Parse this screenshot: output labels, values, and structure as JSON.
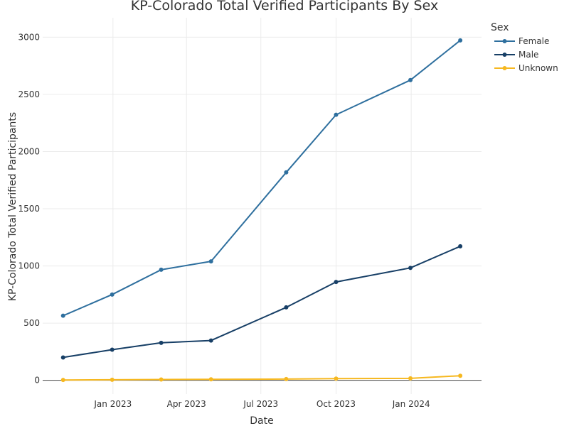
{
  "chart_data": {
    "type": "line",
    "title": "KP-Colorado Total Verified Participants By Sex",
    "xlabel": "Date",
    "ylabel": "KP-Colorado Total Verified Participants",
    "x": [
      "2022-11-01",
      "2022-12-31",
      "2023-03-01",
      "2023-05-01",
      "2023-08-01",
      "2023-10-01",
      "2023-12-31",
      "2024-03-01"
    ],
    "x_ticks": [
      {
        "date": "2023-01-01",
        "label": "Jan 2023"
      },
      {
        "date": "2023-04-01",
        "label": "Apr 2023"
      },
      {
        "date": "2023-07-01",
        "label": "Jul 2023"
      },
      {
        "date": "2023-10-01",
        "label": "Oct 2023"
      },
      {
        "date": "2024-01-01",
        "label": "Jan 2024"
      }
    ],
    "xlim": [
      "2022-10-07",
      "2024-03-27"
    ],
    "y_ticks": [
      0,
      500,
      1000,
      1500,
      2000,
      2500,
      3000
    ],
    "ylim": [
      -120,
      3170
    ],
    "grid": true,
    "legend_title": "Sex",
    "legend_placement": "top-right",
    "series": [
      {
        "name": "Female",
        "color": "#2e6f9e",
        "values": [
          565,
          750,
          967,
          1040,
          1818,
          2322,
          2625,
          2972
        ]
      },
      {
        "name": "Male",
        "color": "#173f66",
        "values": [
          200,
          268,
          328,
          348,
          638,
          860,
          983,
          1172
        ]
      },
      {
        "name": "Unknown",
        "color": "#f6b820",
        "values": [
          3,
          5,
          7,
          9,
          11,
          15,
          17,
          40
        ]
      }
    ]
  }
}
